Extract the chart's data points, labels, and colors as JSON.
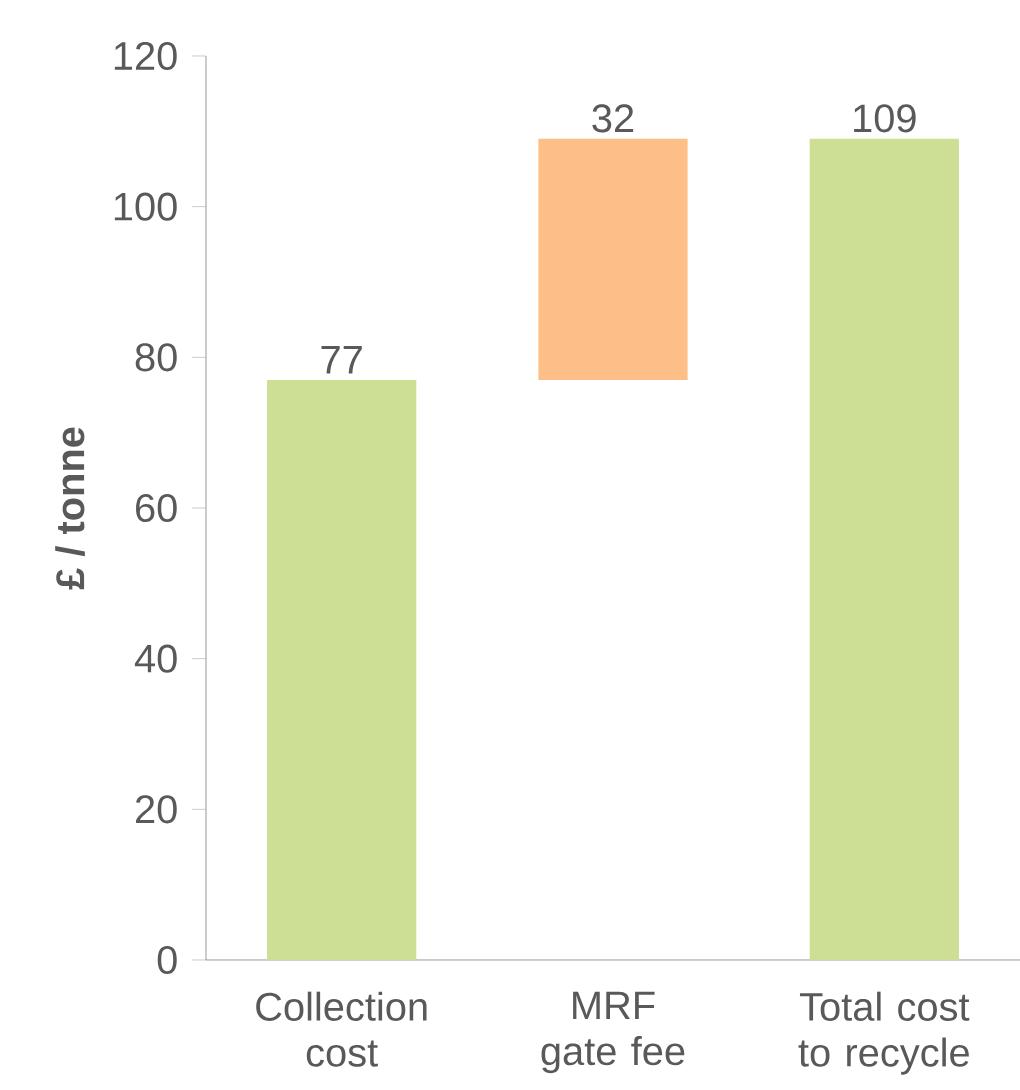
{
  "chart_data": {
    "type": "bar",
    "ylabel": "£ / tonne",
    "categories": [
      "Collection cost",
      "MRF gate fee",
      "Total cost to recycle"
    ],
    "base": [
      0,
      77,
      0
    ],
    "values": [
      77,
      32,
      109
    ],
    "colors": [
      "#cddf94",
      "#fdbf87",
      "#cddf94"
    ],
    "data_labels": true,
    "ylim": [
      0,
      120
    ],
    "yticks": [
      0,
      20,
      40,
      60,
      80,
      100,
      120
    ]
  }
}
